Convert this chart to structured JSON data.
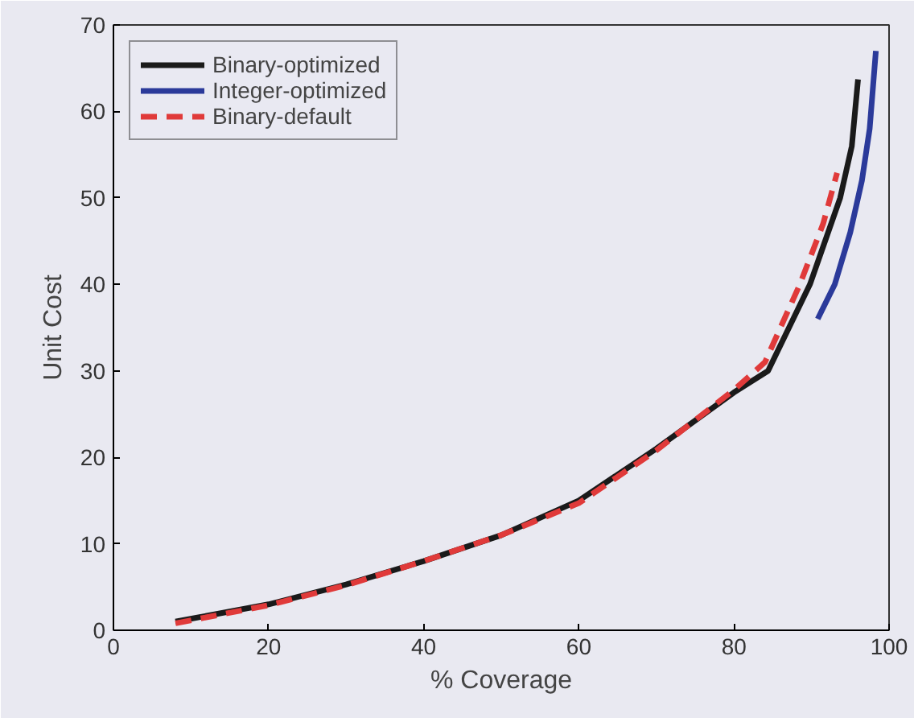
{
  "chart_data": {
    "type": "line",
    "xlabel": "% Coverage",
    "ylabel": "Unit Cost",
    "xlim": [
      0,
      100
    ],
    "xticks": [
      0,
      20,
      40,
      60,
      80,
      100
    ],
    "ylim": [
      0,
      70
    ],
    "yticks": [
      0,
      10,
      20,
      30,
      40,
      50,
      60,
      70
    ],
    "grid": false,
    "legend": "top left",
    "series": [
      {
        "name": "Binary-optimized",
        "color": "#1a1a1a",
        "line_style": "solid",
        "x": [
          8,
          20,
          30,
          40,
          50,
          60,
          70,
          80,
          84.4,
          89.8,
          93.7,
          95.2,
          96
        ],
        "values": [
          1,
          3,
          5.3,
          8,
          11,
          15,
          21,
          27.5,
          30,
          40,
          50,
          56,
          63.7
        ]
      },
      {
        "name": "Integer-optimized",
        "color": "#2b3a9a",
        "line_style": "solid",
        "x": [
          90.8,
          93,
          95,
          96.5,
          97.5,
          98.3
        ],
        "values": [
          36,
          40,
          46,
          52,
          58,
          67
        ]
      },
      {
        "name": "Binary-default",
        "color": "#e03a3a",
        "line_style": "dashed",
        "x": [
          8,
          20,
          30,
          40,
          50,
          60,
          70,
          80,
          84,
          88.5,
          91.5,
          93.3
        ],
        "values": [
          0.8,
          2.9,
          5.2,
          8,
          11,
          14.7,
          20.8,
          27.8,
          31,
          40,
          47,
          52.9
        ]
      }
    ]
  }
}
